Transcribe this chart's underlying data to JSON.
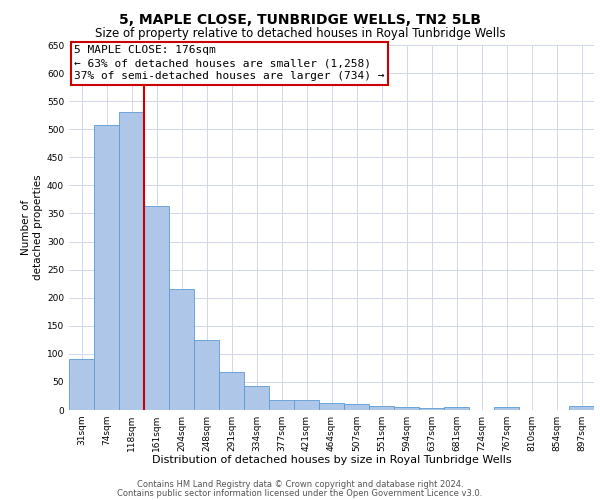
{
  "title": "5, MAPLE CLOSE, TUNBRIDGE WELLS, TN2 5LB",
  "subtitle": "Size of property relative to detached houses in Royal Tunbridge Wells",
  "xlabel": "Distribution of detached houses by size in Royal Tunbridge Wells",
  "ylabel": "Number of\ndetached properties",
  "categories": [
    "31sqm",
    "74sqm",
    "118sqm",
    "161sqm",
    "204sqm",
    "248sqm",
    "291sqm",
    "334sqm",
    "377sqm",
    "421sqm",
    "464sqm",
    "507sqm",
    "551sqm",
    "594sqm",
    "637sqm",
    "681sqm",
    "724sqm",
    "767sqm",
    "810sqm",
    "854sqm",
    "897sqm"
  ],
  "values": [
    90,
    507,
    530,
    363,
    215,
    125,
    68,
    42,
    17,
    18,
    12,
    10,
    7,
    5,
    3,
    5,
    0,
    5,
    0,
    0,
    7
  ],
  "bar_color": "#aec6e8",
  "bar_edge_color": "#5b9bd5",
  "grid_color": "#d0d8e8",
  "vline_color": "#cc0000",
  "annotation_line1": "5 MAPLE CLOSE: 176sqm",
  "annotation_line2": "← 63% of detached houses are smaller (1,258)",
  "annotation_line3": "37% of semi-detached houses are larger (734) →",
  "annotation_box_color": "#ffffff",
  "annotation_box_edge_color": "#cc0000",
  "ylim": [
    0,
    650
  ],
  "yticks": [
    0,
    50,
    100,
    150,
    200,
    250,
    300,
    350,
    400,
    450,
    500,
    550,
    600,
    650
  ],
  "footer_line1": "Contains HM Land Registry data © Crown copyright and database right 2024.",
  "footer_line2": "Contains public sector information licensed under the Open Government Licence v3.0.",
  "title_fontsize": 10,
  "subtitle_fontsize": 8.5,
  "xlabel_fontsize": 8,
  "ylabel_fontsize": 7.5,
  "tick_fontsize": 6.5,
  "annotation_fontsize": 8,
  "footer_fontsize": 6
}
